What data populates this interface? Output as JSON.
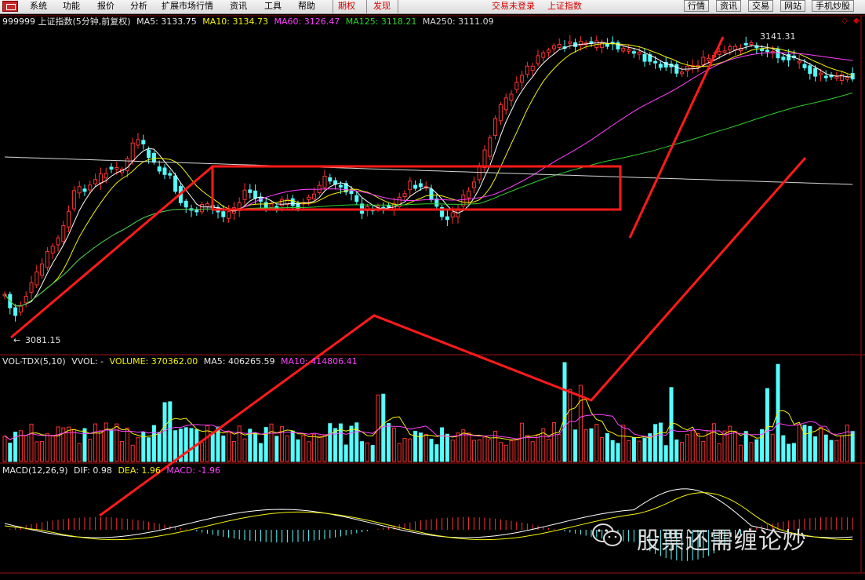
{
  "menu": {
    "items": [
      "系统",
      "功能",
      "报价",
      "分析",
      "扩展市场行情",
      "资讯",
      "工具",
      "帮助"
    ],
    "futures": "期权",
    "discover": "发现",
    "login_status": "交易未登录",
    "index_name": "上证指数",
    "right_buttons": [
      "行情",
      "资讯",
      "交易",
      "网站",
      "手机炒股"
    ]
  },
  "main_header": {
    "title": "999999 上证指数(5分钟,前复权)",
    "ma5": "MA5: 3133.75",
    "ma10": "MA10: 3134.73",
    "ma60": "MA60: 3126.47",
    "ma125": "MA125: 3118.21",
    "ma250": "MA250: 3111.09"
  },
  "price_labels": {
    "high": "3141.31",
    "low": "3081.15"
  },
  "volume_header": {
    "name": "VOL-TDX(5,10)",
    "vvol": "VVOL: -",
    "volume": "VOLUME: 370362.00",
    "ma5": "MA5: 406265.59",
    "ma10": "MA10: 414806.41"
  },
  "macd_header": {
    "name": "MACD(12,26,9)",
    "dif": "DIF: 0.98",
    "dea": "DEA: 1.96",
    "macd": "MACD: -1.96"
  },
  "watermark": "股票还需缠论炒",
  "colors": {
    "up": "#ff3232",
    "down": "#54ffff",
    "ma5": "#ffffff",
    "ma10": "#f4f400",
    "ma60": "#ff40ff",
    "ma125": "#2ed12e",
    "ma250": "#d8d8d8",
    "annotation": "#ff1a1a"
  }
}
